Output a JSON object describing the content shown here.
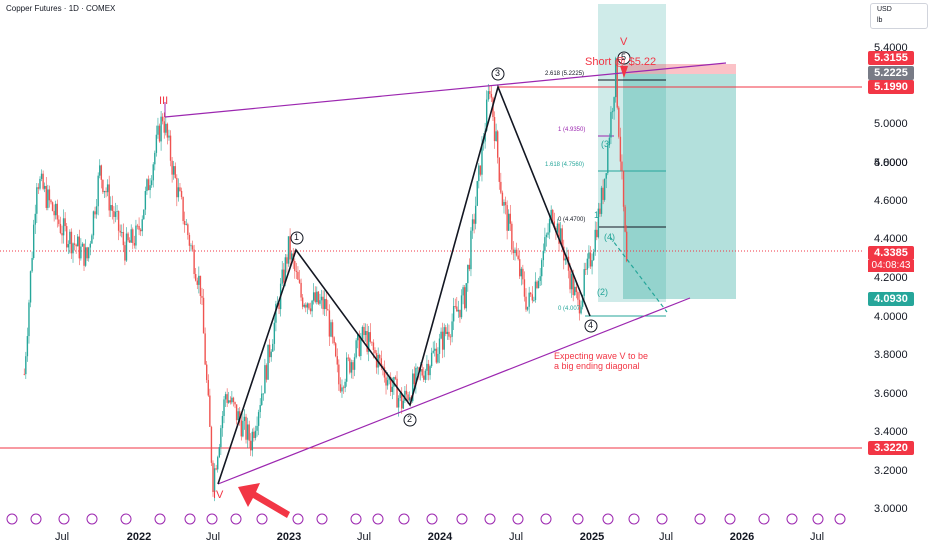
{
  "header": {
    "title": "Copper Futures · 1D · COMEX"
  },
  "unit_toggle": {
    "currency": "USD",
    "unit": "lb"
  },
  "colors": {
    "candle_up": "#26a69a",
    "candle_down": "#ef5350",
    "wave_line": "#131722",
    "channel": "#9c27b0",
    "support": "#f23645",
    "target_zone": "#26a69a",
    "stop_zone": "#f23645",
    "annotation_red": "#f23645"
  },
  "price_badges": {
    "p5315": "5.3155",
    "p5222": "5.2225",
    "p5199": "5.1990",
    "last": "4.3385",
    "countdown": "04:08:43",
    "p4093": "4.0930",
    "p3322": "3.3220"
  },
  "annotations": {
    "short_label": "Short @ $5.22",
    "expectation_line1": "Expecting wave V to be",
    "expectation_line2": "a big ending diagonal",
    "wave_III": "III",
    "wave_IV": "IV",
    "wave_V": "V",
    "w1": "1",
    "w2": "2",
    "w3": "3",
    "w4": "4",
    "w5": "5",
    "sub3": "(3",
    "sub4": "(4)",
    "sub2": "(2)",
    "sub1": "1",
    "fib_2618": "2.618 (5.2225)",
    "fib_1": "1 (4.9350)",
    "fib_1618": "1.618 (4.7560)",
    "fib_0_top": "0 (4.4700)",
    "fib_0_bottom": "0 (4.007)"
  },
  "chart_data": {
    "type": "candlestick",
    "title": "Copper Futures · 1D · COMEX",
    "ylim": [
      3.0,
      5.5
    ],
    "y_ticks": [
      "5.4000",
      "5.2000",
      "5.0000",
      "4.8000",
      "4.6000",
      "4.4000",
      "4.2000",
      "4.0000",
      "3.8000",
      "3.6000",
      "3.4000",
      "3.2000",
      "3.0000"
    ],
    "x_ticks": [
      "Jul",
      "2022",
      "Jul",
      "2023",
      "Jul",
      "2024",
      "Jul",
      "2025",
      "Jul",
      "2026",
      "Jul"
    ],
    "x_ticks_bold": [
      "2022",
      "2023",
      "2024",
      "2025",
      "2026"
    ],
    "price_path": [
      [
        "2021-04",
        3.7
      ],
      [
        "2021-05",
        4.72
      ],
      [
        "2021-07",
        4.45
      ],
      [
        "2021-09",
        4.3
      ],
      [
        "2021-10",
        4.75
      ],
      [
        "2021-12",
        4.35
      ],
      [
        "2022-01",
        4.42
      ],
      [
        "2022-03",
        5.04
      ],
      [
        "2022-04",
        4.7
      ],
      [
        "2022-06",
        4.15
      ],
      [
        "2022-07",
        3.15
      ],
      [
        "2022-08",
        3.6
      ],
      [
        "2022-10",
        3.35
      ],
      [
        "2022-11",
        3.65
      ],
      [
        "2023-01",
        4.35
      ],
      [
        "2023-02",
        4.1
      ],
      [
        "2023-04",
        4.05
      ],
      [
        "2023-05",
        3.65
      ],
      [
        "2023-07",
        3.9
      ],
      [
        "2023-10",
        3.55
      ],
      [
        "2024-01",
        3.85
      ],
      [
        "2024-03",
        4.1
      ],
      [
        "2024-05",
        5.2
      ],
      [
        "2024-06",
        4.6
      ],
      [
        "2024-08",
        4.05
      ],
      [
        "2024-09",
        4.25
      ],
      [
        "2024-10",
        4.55
      ],
      [
        "2024-12",
        4.05
      ],
      [
        "2025-01",
        4.3
      ],
      [
        "2025-02",
        4.65
      ],
      [
        "2025-03",
        5.27
      ],
      [
        "2025-04",
        4.1
      ],
      [
        "2025-04",
        4.33
      ]
    ],
    "levels": {
      "short_entry": 5.22,
      "stop": 5.3155,
      "target": 4.093,
      "support": 3.322,
      "resistance": 5.199,
      "last": 4.3385
    },
    "grid": false
  }
}
